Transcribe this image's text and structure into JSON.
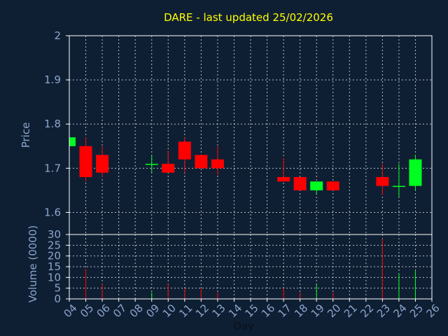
{
  "chart_data": [
    {
      "type": "candlestick",
      "title": "DARE - last updated 25/02/2026",
      "ylabel": "Price",
      "ylim": [
        1.55,
        2.0
      ],
      "yticks": [
        1.6,
        1.7,
        1.8,
        1.9,
        2
      ],
      "ytick_labels": [
        "1.6",
        "1.7",
        "1.8",
        "1.9",
        "2"
      ],
      "grid": true,
      "series": [
        {
          "day": 4,
          "open": 1.75,
          "high": 1.77,
          "low": 1.75,
          "close": 1.77
        },
        {
          "day": 5,
          "open": 1.75,
          "high": 1.77,
          "low": 1.67,
          "close": 1.68
        },
        {
          "day": 6,
          "open": 1.73,
          "high": 1.75,
          "low": 1.68,
          "close": 1.69
        },
        {
          "day": 9,
          "open": 1.71,
          "high": 1.73,
          "low": 1.69,
          "close": 1.71
        },
        {
          "day": 10,
          "open": 1.71,
          "high": 1.74,
          "low": 1.69,
          "close": 1.69
        },
        {
          "day": 11,
          "open": 1.76,
          "high": 1.77,
          "low": 1.69,
          "close": 1.72
        },
        {
          "day": 12,
          "open": 1.73,
          "high": 1.73,
          "low": 1.7,
          "close": 1.7
        },
        {
          "day": 13,
          "open": 1.72,
          "high": 1.75,
          "low": 1.685,
          "close": 1.7
        },
        {
          "day": 17,
          "open": 1.68,
          "high": 1.723,
          "low": 1.67,
          "close": 1.67
        },
        {
          "day": 18,
          "open": 1.68,
          "high": 1.68,
          "low": 1.65,
          "close": 1.65
        },
        {
          "day": 19,
          "open": 1.65,
          "high": 1.67,
          "low": 1.64,
          "close": 1.67
        },
        {
          "day": 20,
          "open": 1.67,
          "high": 1.67,
          "low": 1.65,
          "close": 1.65
        },
        {
          "day": 23,
          "open": 1.68,
          "high": 1.71,
          "low": 1.64,
          "close": 1.66
        },
        {
          "day": 24,
          "open": 1.66,
          "high": 1.71,
          "low": 1.635,
          "close": 1.66
        },
        {
          "day": 25,
          "open": 1.66,
          "high": 1.73,
          "low": 1.65,
          "close": 1.72
        }
      ],
      "up_color": "#00ff20",
      "down_color": "#ff0000"
    },
    {
      "type": "bar",
      "ylabel": "Volume (0000)",
      "xlabel": "Day",
      "ylim": [
        0,
        30
      ],
      "yticks": [
        0,
        5,
        10,
        15,
        20,
        25,
        30
      ],
      "ytick_labels": [
        "0",
        "5",
        "10",
        "15",
        "20",
        "25",
        "30"
      ],
      "x_ticks": [
        4,
        5,
        6,
        7,
        8,
        9,
        10,
        11,
        12,
        13,
        14,
        15,
        16,
        17,
        18,
        19,
        20,
        21,
        22,
        23,
        24,
        25,
        26
      ],
      "x_tick_labels": [
        "04",
        "05",
        "06",
        "07",
        "08",
        "09",
        "10",
        "11",
        "12",
        "13",
        "14",
        "15",
        "16",
        "17",
        "18",
        "19",
        "20",
        "21",
        "22",
        "23",
        "24",
        "25",
        "26"
      ],
      "grid": true,
      "series": [
        {
          "day": 4,
          "volume": 0,
          "dir": "up"
        },
        {
          "day": 5,
          "volume": 14,
          "dir": "down"
        },
        {
          "day": 6,
          "volume": 7,
          "dir": "down"
        },
        {
          "day": 9,
          "volume": 3,
          "dir": "up"
        },
        {
          "day": 10,
          "volume": 7,
          "dir": "down"
        },
        {
          "day": 11,
          "volume": 5,
          "dir": "down"
        },
        {
          "day": 12,
          "volume": 5,
          "dir": "down"
        },
        {
          "day": 13,
          "volume": 3,
          "dir": "down"
        },
        {
          "day": 17,
          "volume": 5,
          "dir": "down"
        },
        {
          "day": 18,
          "volume": 3,
          "dir": "down"
        },
        {
          "day": 19,
          "volume": 7,
          "dir": "up"
        },
        {
          "day": 20,
          "volume": 3,
          "dir": "down"
        },
        {
          "day": 23,
          "volume": 28,
          "dir": "down"
        },
        {
          "day": 24,
          "volume": 12,
          "dir": "up"
        },
        {
          "day": 25,
          "volume": 13,
          "dir": "up"
        }
      ]
    }
  ],
  "colors": {
    "background": "#0f1f33",
    "title": "#ffff00",
    "axis_text": "#8aa6cc",
    "frame": "#ffffff",
    "grid": "#ffffff"
  }
}
